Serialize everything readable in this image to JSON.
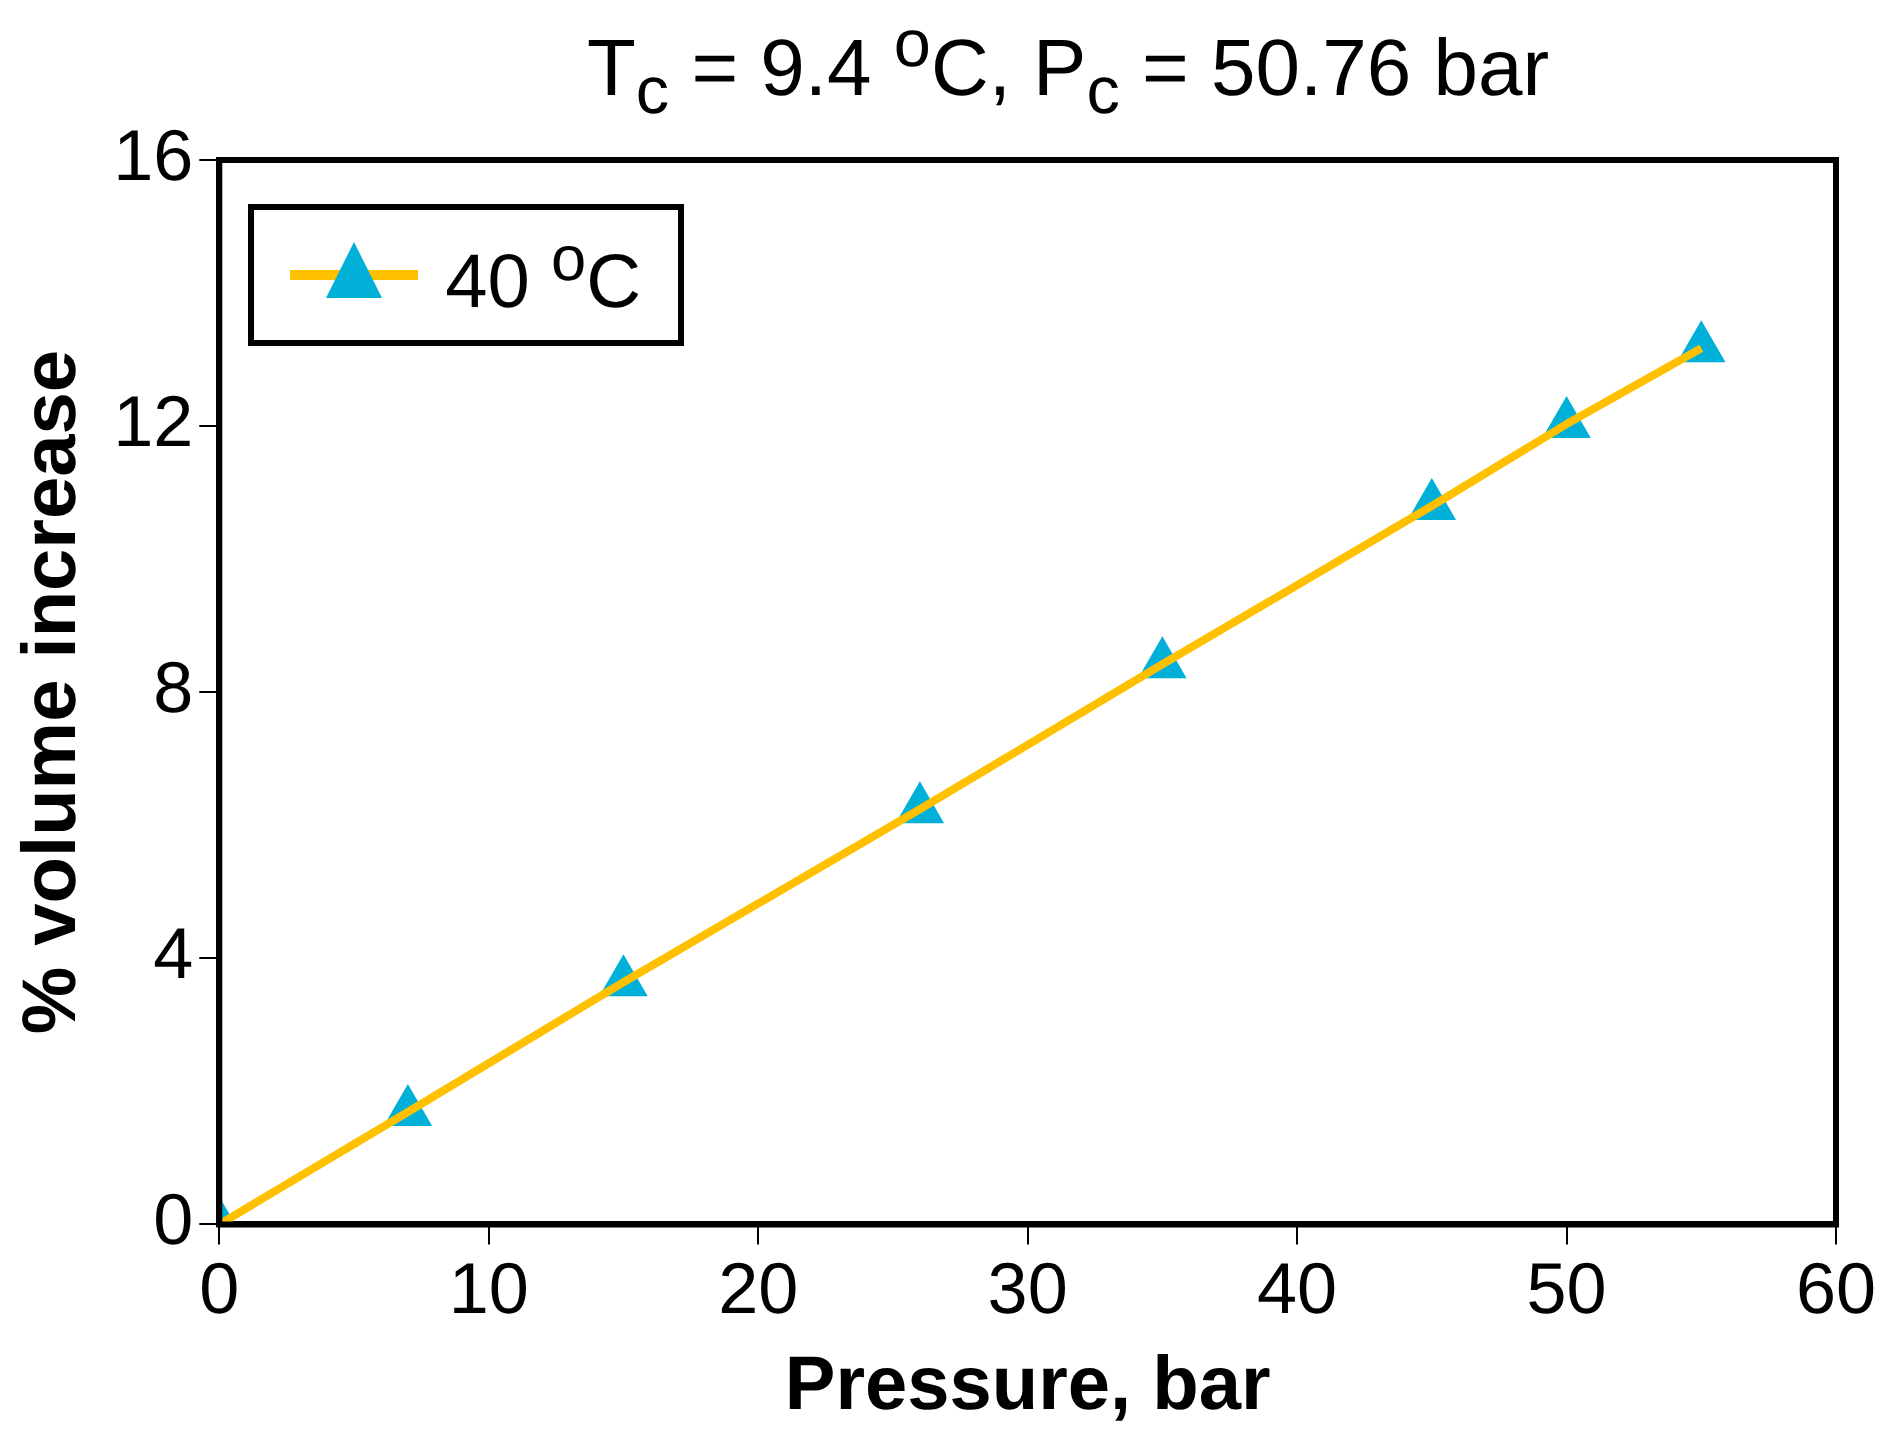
{
  "chart_data": {
    "type": "line",
    "title": "T$_{c}$ = 9.4 $^{o}$C, P$_{c}$ = 50.76 bar",
    "xlabel": "Pressure, bar",
    "ylabel": "% volume increase",
    "x": [
      0,
      7,
      15,
      26,
      35,
      45,
      50,
      55
    ],
    "series": [
      {
        "name": "40 $^{o}$C",
        "color": "#ffc000",
        "colors": [
          "#00b0d8",
          "#00b0d8",
          "#00b0d8",
          "#00b0d8",
          "#00b0d8",
          "#00b0d8",
          "#00b0d8",
          "#00b0d8"
        ],
        "values": [
          0,
          1.69,
          3.64,
          6.24,
          8.42,
          10.8,
          12.03,
          13.17
        ]
      }
    ],
    "xlim": [
      0,
      60
    ],
    "xticks": [
      0,
      10,
      20,
      30,
      40,
      50,
      60
    ],
    "ylim": [
      0,
      16
    ],
    "yticks": [
      0,
      4,
      8,
      12,
      16
    ],
    "grid": false,
    "legend": "top left",
    "marker": "triangle",
    "line_style": "solid"
  }
}
